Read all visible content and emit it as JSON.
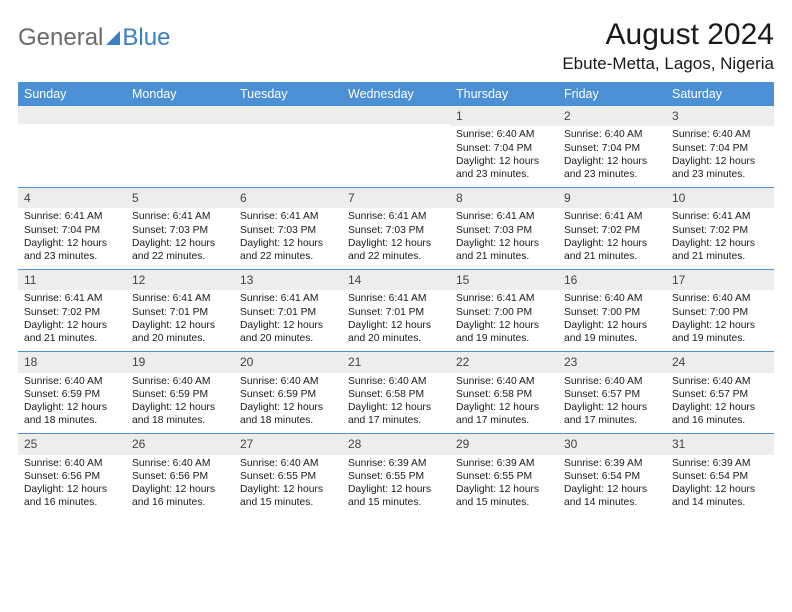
{
  "logo": {
    "word1": "General",
    "word2": "Blue"
  },
  "title": "August 2024",
  "location": "Ebute-Metta, Lagos, Nigeria",
  "colors": {
    "header_bg": "#4b8fd4",
    "header_text": "#ffffff",
    "daynum_bg": "#ededed",
    "week_border": "#4b8fd4",
    "logo_grey": "#6a6a6a",
    "logo_blue": "#3b7fc4"
  },
  "weekdays": [
    "Sunday",
    "Monday",
    "Tuesday",
    "Wednesday",
    "Thursday",
    "Friday",
    "Saturday"
  ],
  "weeks": [
    [
      null,
      null,
      null,
      null,
      {
        "n": "1",
        "sr": "Sunrise: 6:40 AM",
        "ss": "Sunset: 7:04 PM",
        "d1": "Daylight: 12 hours",
        "d2": "and 23 minutes."
      },
      {
        "n": "2",
        "sr": "Sunrise: 6:40 AM",
        "ss": "Sunset: 7:04 PM",
        "d1": "Daylight: 12 hours",
        "d2": "and 23 minutes."
      },
      {
        "n": "3",
        "sr": "Sunrise: 6:40 AM",
        "ss": "Sunset: 7:04 PM",
        "d1": "Daylight: 12 hours",
        "d2": "and 23 minutes."
      }
    ],
    [
      {
        "n": "4",
        "sr": "Sunrise: 6:41 AM",
        "ss": "Sunset: 7:04 PM",
        "d1": "Daylight: 12 hours",
        "d2": "and 23 minutes."
      },
      {
        "n": "5",
        "sr": "Sunrise: 6:41 AM",
        "ss": "Sunset: 7:03 PM",
        "d1": "Daylight: 12 hours",
        "d2": "and 22 minutes."
      },
      {
        "n": "6",
        "sr": "Sunrise: 6:41 AM",
        "ss": "Sunset: 7:03 PM",
        "d1": "Daylight: 12 hours",
        "d2": "and 22 minutes."
      },
      {
        "n": "7",
        "sr": "Sunrise: 6:41 AM",
        "ss": "Sunset: 7:03 PM",
        "d1": "Daylight: 12 hours",
        "d2": "and 22 minutes."
      },
      {
        "n": "8",
        "sr": "Sunrise: 6:41 AM",
        "ss": "Sunset: 7:03 PM",
        "d1": "Daylight: 12 hours",
        "d2": "and 21 minutes."
      },
      {
        "n": "9",
        "sr": "Sunrise: 6:41 AM",
        "ss": "Sunset: 7:02 PM",
        "d1": "Daylight: 12 hours",
        "d2": "and 21 minutes."
      },
      {
        "n": "10",
        "sr": "Sunrise: 6:41 AM",
        "ss": "Sunset: 7:02 PM",
        "d1": "Daylight: 12 hours",
        "d2": "and 21 minutes."
      }
    ],
    [
      {
        "n": "11",
        "sr": "Sunrise: 6:41 AM",
        "ss": "Sunset: 7:02 PM",
        "d1": "Daylight: 12 hours",
        "d2": "and 21 minutes."
      },
      {
        "n": "12",
        "sr": "Sunrise: 6:41 AM",
        "ss": "Sunset: 7:01 PM",
        "d1": "Daylight: 12 hours",
        "d2": "and 20 minutes."
      },
      {
        "n": "13",
        "sr": "Sunrise: 6:41 AM",
        "ss": "Sunset: 7:01 PM",
        "d1": "Daylight: 12 hours",
        "d2": "and 20 minutes."
      },
      {
        "n": "14",
        "sr": "Sunrise: 6:41 AM",
        "ss": "Sunset: 7:01 PM",
        "d1": "Daylight: 12 hours",
        "d2": "and 20 minutes."
      },
      {
        "n": "15",
        "sr": "Sunrise: 6:41 AM",
        "ss": "Sunset: 7:00 PM",
        "d1": "Daylight: 12 hours",
        "d2": "and 19 minutes."
      },
      {
        "n": "16",
        "sr": "Sunrise: 6:40 AM",
        "ss": "Sunset: 7:00 PM",
        "d1": "Daylight: 12 hours",
        "d2": "and 19 minutes."
      },
      {
        "n": "17",
        "sr": "Sunrise: 6:40 AM",
        "ss": "Sunset: 7:00 PM",
        "d1": "Daylight: 12 hours",
        "d2": "and 19 minutes."
      }
    ],
    [
      {
        "n": "18",
        "sr": "Sunrise: 6:40 AM",
        "ss": "Sunset: 6:59 PM",
        "d1": "Daylight: 12 hours",
        "d2": "and 18 minutes."
      },
      {
        "n": "19",
        "sr": "Sunrise: 6:40 AM",
        "ss": "Sunset: 6:59 PM",
        "d1": "Daylight: 12 hours",
        "d2": "and 18 minutes."
      },
      {
        "n": "20",
        "sr": "Sunrise: 6:40 AM",
        "ss": "Sunset: 6:59 PM",
        "d1": "Daylight: 12 hours",
        "d2": "and 18 minutes."
      },
      {
        "n": "21",
        "sr": "Sunrise: 6:40 AM",
        "ss": "Sunset: 6:58 PM",
        "d1": "Daylight: 12 hours",
        "d2": "and 17 minutes."
      },
      {
        "n": "22",
        "sr": "Sunrise: 6:40 AM",
        "ss": "Sunset: 6:58 PM",
        "d1": "Daylight: 12 hours",
        "d2": "and 17 minutes."
      },
      {
        "n": "23",
        "sr": "Sunrise: 6:40 AM",
        "ss": "Sunset: 6:57 PM",
        "d1": "Daylight: 12 hours",
        "d2": "and 17 minutes."
      },
      {
        "n": "24",
        "sr": "Sunrise: 6:40 AM",
        "ss": "Sunset: 6:57 PM",
        "d1": "Daylight: 12 hours",
        "d2": "and 16 minutes."
      }
    ],
    [
      {
        "n": "25",
        "sr": "Sunrise: 6:40 AM",
        "ss": "Sunset: 6:56 PM",
        "d1": "Daylight: 12 hours",
        "d2": "and 16 minutes."
      },
      {
        "n": "26",
        "sr": "Sunrise: 6:40 AM",
        "ss": "Sunset: 6:56 PM",
        "d1": "Daylight: 12 hours",
        "d2": "and 16 minutes."
      },
      {
        "n": "27",
        "sr": "Sunrise: 6:40 AM",
        "ss": "Sunset: 6:55 PM",
        "d1": "Daylight: 12 hours",
        "d2": "and 15 minutes."
      },
      {
        "n": "28",
        "sr": "Sunrise: 6:39 AM",
        "ss": "Sunset: 6:55 PM",
        "d1": "Daylight: 12 hours",
        "d2": "and 15 minutes."
      },
      {
        "n": "29",
        "sr": "Sunrise: 6:39 AM",
        "ss": "Sunset: 6:55 PM",
        "d1": "Daylight: 12 hours",
        "d2": "and 15 minutes."
      },
      {
        "n": "30",
        "sr": "Sunrise: 6:39 AM",
        "ss": "Sunset: 6:54 PM",
        "d1": "Daylight: 12 hours",
        "d2": "and 14 minutes."
      },
      {
        "n": "31",
        "sr": "Sunrise: 6:39 AM",
        "ss": "Sunset: 6:54 PM",
        "d1": "Daylight: 12 hours",
        "d2": "and 14 minutes."
      }
    ]
  ]
}
